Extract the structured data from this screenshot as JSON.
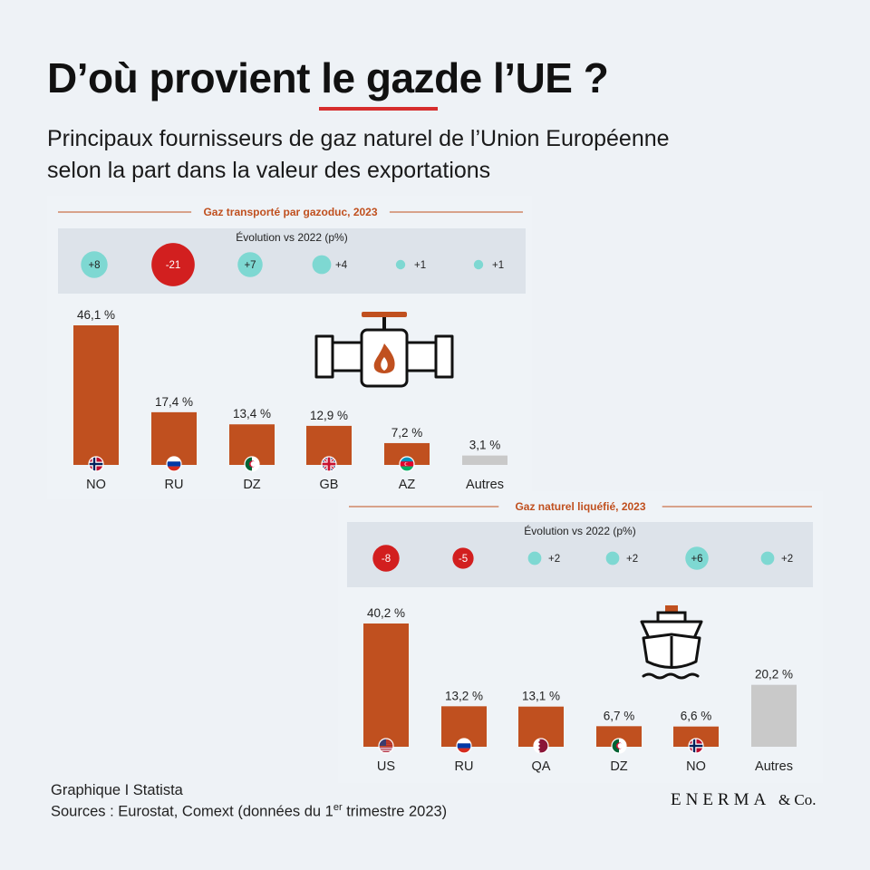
{
  "header": {
    "title_pre": "D’où provient ",
    "title_highlight": "le gaz ",
    "title_post": "de l’UE ?",
    "subtitle_line1": "Principaux fournisseurs de gaz naturel de l’Union Européenne",
    "subtitle_line2": "selon la part dans la valeur des exportations"
  },
  "colors": {
    "bar": "#c0501f",
    "bar_other": "#c9c9c9",
    "positive_bubble": "#7ed8d2",
    "negative_bubble": "#d21f1f",
    "section_title": "#c0501f",
    "evolution_band": "#dde3ea"
  },
  "chart_data": [
    {
      "type": "bar",
      "title": "Gaz transporté par gazoduc, 2023",
      "evolution_label": "Évolution vs 2022 (p%)",
      "categories": [
        "NO",
        "RU",
        "DZ",
        "GB",
        "AZ",
        "Autres"
      ],
      "values": [
        46.1,
        17.4,
        13.4,
        12.9,
        7.2,
        3.1
      ],
      "value_labels": [
        "46,1 %",
        "17,4 %",
        "13,4 %",
        "12,9 %",
        "7,2 %",
        "3,1 %"
      ],
      "evolution": [
        8,
        -21,
        7,
        4,
        1,
        1
      ],
      "evolution_labels": [
        "+8",
        "-21",
        "+7",
        "+4",
        "+1",
        "+1"
      ],
      "flags": [
        "NO",
        "RU",
        "DZ",
        "GB",
        "AZ",
        null
      ],
      "icon": "pipeline-fire-icon",
      "ylim": [
        0,
        46.1
      ]
    },
    {
      "type": "bar",
      "title": "Gaz naturel liquéfié, 2023",
      "evolution_label": "Évolution vs 2022 (p%)",
      "categories": [
        "US",
        "RU",
        "QA",
        "DZ",
        "NO",
        "Autres"
      ],
      "values": [
        40.2,
        13.2,
        13.1,
        6.7,
        6.6,
        20.2
      ],
      "value_labels": [
        "40,2 %",
        "13,2 %",
        "13,1 %",
        "6,7 %",
        "6,6 %",
        "20,2 %"
      ],
      "evolution": [
        -8,
        -5,
        2,
        2,
        6,
        2
      ],
      "evolution_labels": [
        "-8",
        "-5",
        "+2",
        "+2",
        "+6",
        "+2"
      ],
      "flags": [
        "US",
        "RU",
        "QA",
        "DZ",
        "NO",
        null
      ],
      "icon": "lng-ship-icon",
      "ylim": [
        0,
        40.2
      ]
    }
  ],
  "footer": {
    "line1": "Graphique I Statista",
    "line2_pre": "Sources : Eurostat, Comext (données du 1",
    "line2_sup": "er",
    "line2_post": " trimestre 2023)",
    "brand": "ENERMA",
    "brand_suffix": "& Co."
  }
}
